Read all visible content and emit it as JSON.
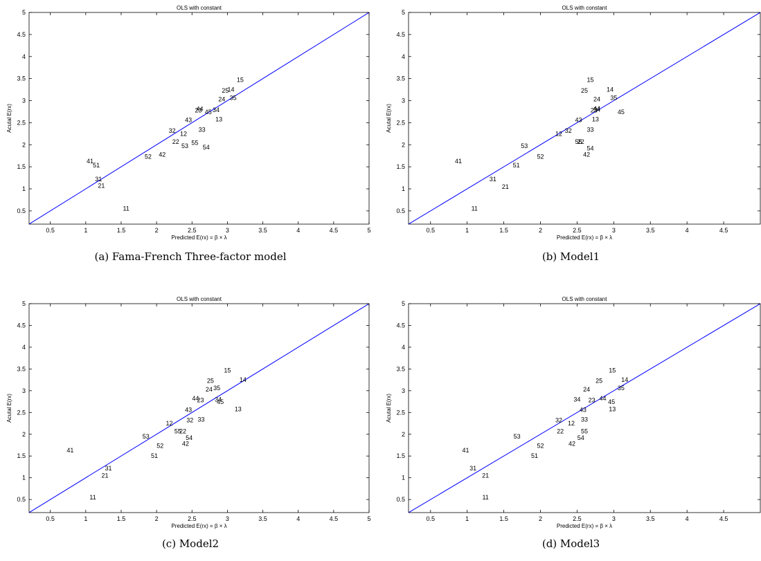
{
  "chart_data": [
    {
      "type": "scatter",
      "caption": "(a) Fama-French Three-factor model",
      "title": "OLS with constant",
      "xlabel": "Predicted E(rx) = β × λ",
      "ylabel": "Acutal E(rx)",
      "xlim": [
        0.2,
        5
      ],
      "ylim": [
        0.2,
        5
      ],
      "xticks": [
        0.5,
        1,
        1.5,
        2,
        2.5,
        3,
        3.5,
        4,
        4.5,
        5
      ],
      "xtick_labels": [
        "0.5",
        "1",
        "1.5",
        "2",
        "2.5",
        "3",
        "3.5",
        "4",
        "4.5",
        "5"
      ],
      "yticks": [
        0.5,
        1,
        1.5,
        2,
        2.5,
        3,
        3.5,
        4,
        4.5,
        5
      ],
      "ytick_labels": [
        "0.5",
        "1",
        "1.5",
        "2",
        "2.5",
        "3",
        "3.5",
        "4",
        "4.5",
        "5"
      ],
      "reference_line": {
        "type": "45-degree",
        "color": "#0000ff"
      },
      "points": [
        {
          "label": "11",
          "x": 1.57,
          "y": 0.55
        },
        {
          "label": "12",
          "x": 2.38,
          "y": 2.25
        },
        {
          "label": "13",
          "x": 2.88,
          "y": 2.58
        },
        {
          "label": "14",
          "x": 3.05,
          "y": 3.25
        },
        {
          "label": "15",
          "x": 3.18,
          "y": 3.47
        },
        {
          "label": "21",
          "x": 1.22,
          "y": 1.07
        },
        {
          "label": "22",
          "x": 2.27,
          "y": 2.07
        },
        {
          "label": "23",
          "x": 2.59,
          "y": 2.78
        },
        {
          "label": "24",
          "x": 2.92,
          "y": 3.03
        },
        {
          "label": "25",
          "x": 2.97,
          "y": 3.23
        },
        {
          "label": "31",
          "x": 1.18,
          "y": 1.22
        },
        {
          "label": "32",
          "x": 2.22,
          "y": 2.32
        },
        {
          "label": "33",
          "x": 2.64,
          "y": 2.34
        },
        {
          "label": "34",
          "x": 2.84,
          "y": 2.79
        },
        {
          "label": "35",
          "x": 3.08,
          "y": 3.06
        },
        {
          "label": "41",
          "x": 1.06,
          "y": 1.63
        },
        {
          "label": "42",
          "x": 2.08,
          "y": 1.78
        },
        {
          "label": "43",
          "x": 2.45,
          "y": 2.56
        },
        {
          "label": "44",
          "x": 2.61,
          "y": 2.81
        },
        {
          "label": "45",
          "x": 2.73,
          "y": 2.74
        },
        {
          "label": "51",
          "x": 1.15,
          "y": 1.53
        },
        {
          "label": "52",
          "x": 1.88,
          "y": 1.73
        },
        {
          "label": "53",
          "x": 2.4,
          "y": 1.97
        },
        {
          "label": "54",
          "x": 2.7,
          "y": 1.94
        },
        {
          "label": "55",
          "x": 2.54,
          "y": 2.04
        }
      ]
    },
    {
      "type": "scatter",
      "caption": "(b) Model1",
      "title": "OLS with constant",
      "xlabel": "Predicted E(rx) = β × λ",
      "ylabel": "Acutal E(rx)",
      "xlim": [
        0.2,
        5
      ],
      "ylim": [
        0.2,
        5
      ],
      "xticks": [
        0.5,
        1,
        1.5,
        2,
        2.5,
        3,
        3.5,
        4,
        4.5
      ],
      "xtick_labels": [
        "0.5",
        "1",
        "1.5",
        "2",
        "2.5",
        "3",
        "3.5",
        "4",
        "4.5"
      ],
      "yticks": [
        0.5,
        1,
        1.5,
        2,
        2.5,
        3,
        3.5,
        4,
        4.5,
        5
      ],
      "ytick_labels": [
        "0.5",
        "1",
        "1.5",
        "2",
        "2.5",
        "3",
        "3.5",
        "4",
        "4.5",
        "5"
      ],
      "reference_line": {
        "type": "45-degree",
        "color": "#0000ff"
      },
      "points": [
        {
          "label": "11",
          "x": 1.1,
          "y": 0.55
        },
        {
          "label": "12",
          "x": 2.25,
          "y": 2.25
        },
        {
          "label": "13",
          "x": 2.75,
          "y": 2.58
        },
        {
          "label": "14",
          "x": 2.95,
          "y": 3.25
        },
        {
          "label": "15",
          "x": 2.68,
          "y": 3.47
        },
        {
          "label": "21",
          "x": 1.52,
          "y": 1.05
        },
        {
          "label": "22",
          "x": 2.55,
          "y": 2.07
        },
        {
          "label": "23",
          "x": 2.73,
          "y": 2.78
        },
        {
          "label": "24",
          "x": 2.77,
          "y": 3.03
        },
        {
          "label": "25",
          "x": 2.6,
          "y": 3.23
        },
        {
          "label": "31",
          "x": 1.35,
          "y": 1.22
        },
        {
          "label": "32",
          "x": 2.38,
          "y": 2.32
        },
        {
          "label": "33",
          "x": 2.68,
          "y": 2.34
        },
        {
          "label": "34",
          "x": 2.77,
          "y": 2.8
        },
        {
          "label": "35",
          "x": 3.0,
          "y": 3.06
        },
        {
          "label": "41",
          "x": 0.88,
          "y": 1.63
        },
        {
          "label": "42",
          "x": 2.63,
          "y": 1.78
        },
        {
          "label": "43",
          "x": 2.52,
          "y": 2.56
        },
        {
          "label": "44",
          "x": 2.77,
          "y": 2.82
        },
        {
          "label": "45",
          "x": 3.1,
          "y": 2.74
        },
        {
          "label": "51",
          "x": 1.67,
          "y": 1.53
        },
        {
          "label": "52",
          "x": 2.0,
          "y": 1.73
        },
        {
          "label": "53",
          "x": 1.78,
          "y": 1.97
        },
        {
          "label": "54",
          "x": 2.68,
          "y": 1.92
        },
        {
          "label": "55",
          "x": 2.52,
          "y": 2.07
        }
      ]
    },
    {
      "type": "scatter",
      "caption": "(c) Model2",
      "title": "OLS with constant",
      "xlabel": "Predicted E(rx) = β × λ",
      "ylabel": "Acutal E(rx)",
      "xlim": [
        0.2,
        5
      ],
      "ylim": [
        0.2,
        5
      ],
      "xticks": [
        0.5,
        1,
        1.5,
        2,
        2.5,
        3,
        3.5,
        4,
        4.5,
        5
      ],
      "xtick_labels": [
        "0.5",
        "1",
        "1.5",
        "2",
        "2.5",
        "3",
        "3.5",
        "4",
        "4.5",
        "5"
      ],
      "yticks": [
        0.5,
        1,
        1.5,
        2,
        2.5,
        3,
        3.5,
        4,
        4.5,
        5
      ],
      "ytick_labels": [
        "0.5",
        "1",
        "1.5",
        "2",
        "2.5",
        "3",
        "3.5",
        "4",
        "4.5",
        "5"
      ],
      "reference_line": {
        "type": "45-degree",
        "color": "#0000ff"
      },
      "points": [
        {
          "label": "11",
          "x": 1.1,
          "y": 0.55
        },
        {
          "label": "12",
          "x": 2.18,
          "y": 2.25
        },
        {
          "label": "13",
          "x": 3.15,
          "y": 2.58
        },
        {
          "label": "14",
          "x": 3.22,
          "y": 3.25
        },
        {
          "label": "15",
          "x": 3.0,
          "y": 3.47
        },
        {
          "label": "21",
          "x": 1.27,
          "y": 1.05
        },
        {
          "label": "22",
          "x": 2.37,
          "y": 2.07
        },
        {
          "label": "23",
          "x": 2.62,
          "y": 2.78
        },
        {
          "label": "24",
          "x": 2.74,
          "y": 3.03
        },
        {
          "label": "25",
          "x": 2.76,
          "y": 3.23
        },
        {
          "label": "31",
          "x": 1.32,
          "y": 1.22
        },
        {
          "label": "32",
          "x": 2.47,
          "y": 2.32
        },
        {
          "label": "33",
          "x": 2.63,
          "y": 2.34
        },
        {
          "label": "34",
          "x": 2.87,
          "y": 2.8
        },
        {
          "label": "35",
          "x": 2.85,
          "y": 3.06
        },
        {
          "label": "41",
          "x": 0.78,
          "y": 1.63
        },
        {
          "label": "42",
          "x": 2.41,
          "y": 1.78
        },
        {
          "label": "43",
          "x": 2.45,
          "y": 2.56
        },
        {
          "label": "44",
          "x": 2.55,
          "y": 2.82
        },
        {
          "label": "45",
          "x": 2.9,
          "y": 2.74
        },
        {
          "label": "51",
          "x": 1.97,
          "y": 1.5
        },
        {
          "label": "52",
          "x": 2.05,
          "y": 1.73
        },
        {
          "label": "53",
          "x": 1.85,
          "y": 1.95
        },
        {
          "label": "54",
          "x": 2.46,
          "y": 1.92
        },
        {
          "label": "55",
          "x": 2.3,
          "y": 2.07
        }
      ]
    },
    {
      "type": "scatter",
      "caption": "(d) Model3",
      "title": "OLS with constant",
      "xlabel": "Predicted E(rx) = β × λ",
      "ylabel": "Acutal E(rx)",
      "xlim": [
        0.2,
        5
      ],
      "ylim": [
        0.2,
        5
      ],
      "xticks": [
        0.5,
        1,
        1.5,
        2,
        2.5,
        3,
        3.5,
        4,
        4.5
      ],
      "xtick_labels": [
        "0.5",
        "1",
        "1.5",
        "2",
        "2.5",
        "3",
        "3.5",
        "4",
        "4.5"
      ],
      "yticks": [
        0.5,
        1,
        1.5,
        2,
        2.5,
        3,
        3.5,
        4,
        4.5,
        5
      ],
      "ytick_labels": [
        "0.5",
        "1",
        "1.5",
        "2",
        "2.5",
        "3",
        "3.5",
        "4",
        "4.5",
        "5"
      ],
      "reference_line": {
        "type": "45-degree",
        "color": "#0000ff"
      },
      "points": [
        {
          "label": "11",
          "x": 1.25,
          "y": 0.55
        },
        {
          "label": "12",
          "x": 2.42,
          "y": 2.25
        },
        {
          "label": "13",
          "x": 2.98,
          "y": 2.58
        },
        {
          "label": "14",
          "x": 3.15,
          "y": 3.25
        },
        {
          "label": "15",
          "x": 2.98,
          "y": 3.47
        },
        {
          "label": "21",
          "x": 1.25,
          "y": 1.05
        },
        {
          "label": "22",
          "x": 2.27,
          "y": 2.07
        },
        {
          "label": "23",
          "x": 2.7,
          "y": 2.78
        },
        {
          "label": "24",
          "x": 2.63,
          "y": 3.03
        },
        {
          "label": "25",
          "x": 2.8,
          "y": 3.23
        },
        {
          "label": "31",
          "x": 1.08,
          "y": 1.22
        },
        {
          "label": "32",
          "x": 2.25,
          "y": 2.32
        },
        {
          "label": "33",
          "x": 2.6,
          "y": 2.34
        },
        {
          "label": "34",
          "x": 2.5,
          "y": 2.8
        },
        {
          "label": "35",
          "x": 3.1,
          "y": 3.06
        },
        {
          "label": "41",
          "x": 0.98,
          "y": 1.63
        },
        {
          "label": "42",
          "x": 2.43,
          "y": 1.78
        },
        {
          "label": "43",
          "x": 2.58,
          "y": 2.56
        },
        {
          "label": "44",
          "x": 2.85,
          "y": 2.82
        },
        {
          "label": "45",
          "x": 2.97,
          "y": 2.74
        },
        {
          "label": "51",
          "x": 1.92,
          "y": 1.5
        },
        {
          "label": "52",
          "x": 2.0,
          "y": 1.73
        },
        {
          "label": "53",
          "x": 1.68,
          "y": 1.95
        },
        {
          "label": "54",
          "x": 2.55,
          "y": 1.92
        },
        {
          "label": "55",
          "x": 2.6,
          "y": 2.07
        }
      ]
    }
  ]
}
